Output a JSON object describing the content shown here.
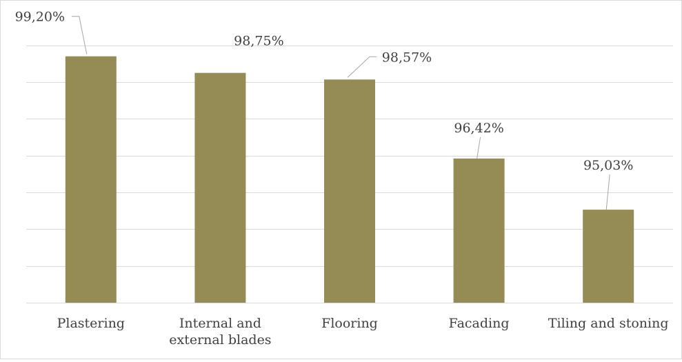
{
  "chart_data": {
    "type": "bar",
    "categories": [
      "Plastering",
      "Internal and external blades",
      "Flooring",
      "Facading",
      "Tiling and stoning"
    ],
    "category_lines": [
      [
        "Plastering"
      ],
      [
        "Internal and",
        "external blades"
      ],
      [
        "Flooring"
      ],
      [
        "Facading"
      ],
      [
        "Tiling and stoning"
      ]
    ],
    "values": [
      99.2,
      98.75,
      98.57,
      96.42,
      95.03
    ],
    "data_labels": [
      "99,20%",
      "98,75%",
      "98,57%",
      "96,42%",
      "95,03%"
    ],
    "title": "",
    "xlabel": "",
    "ylabel": "",
    "ylim": [
      92.5,
      100.0
    ],
    "y_gridline_step": 1,
    "grid": true,
    "legend": "none",
    "colors": {
      "bar": "#958b55",
      "gridline": "#d9d9d9",
      "text": "#404040",
      "leader_line": "#a6a6a6"
    }
  }
}
